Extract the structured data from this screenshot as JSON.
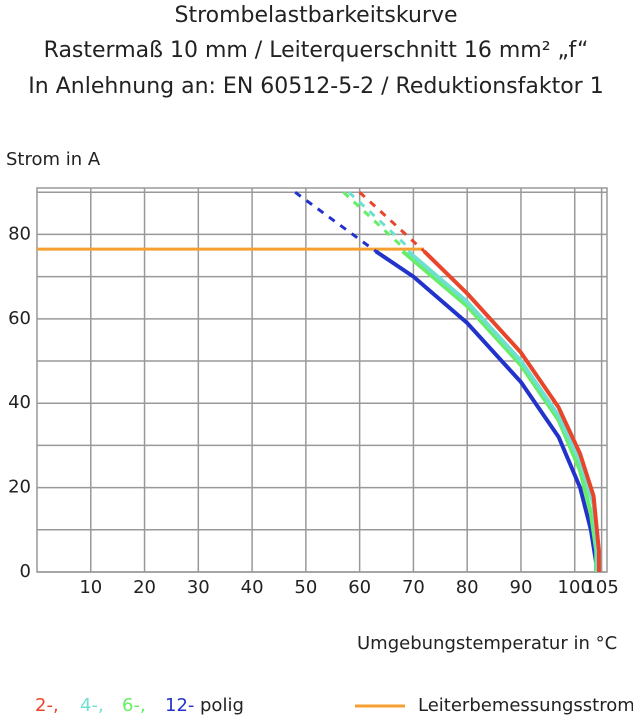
{
  "chart_data": {
    "type": "line",
    "title": [
      "Strombelastbarkeitskurve",
      "Rastermaß 10 mm / Leiterquerschnitt 16 mm² „f“",
      "In Anlehnung an: EN 60512-5-2 / Reduktionsfaktor 1"
    ],
    "y_label": "Strom in A",
    "x_label": "Umgebungstemperatur in °C",
    "xlim": [
      0,
      106
    ],
    "ylim": [
      0,
      91
    ],
    "xticks": [
      10,
      20,
      30,
      40,
      50,
      60,
      70,
      80,
      90,
      100,
      105
    ],
    "yticks": [
      0,
      20,
      40,
      60,
      80
    ],
    "y_minor_ticks": [
      10,
      30,
      50,
      70,
      90
    ],
    "grid": true,
    "legend_suffix": "polig",
    "series": [
      {
        "name": "12-",
        "color": "#2233cc",
        "x": [
          63,
          70,
          80,
          90,
          97,
          101,
          103,
          104,
          104
        ],
        "values": [
          76,
          70,
          59,
          45,
          32,
          20,
          10,
          2,
          0
        ],
        "dash_x": [
          48,
          63
        ],
        "dash_values": [
          90,
          76
        ]
      },
      {
        "name": "6-,",
        "color": "#66ee66",
        "x": [
          68,
          80,
          90,
          97,
          101,
          103,
          104,
          104
        ],
        "values": [
          76,
          63,
          49,
          36,
          24,
          14,
          5,
          0
        ],
        "dash_x": [
          57,
          68
        ],
        "dash_values": [
          90,
          77
        ]
      },
      {
        "name": "4-,",
        "color": "#6fe0d0",
        "x": [
          69,
          80,
          90,
          97,
          101,
          103.5,
          104.2,
          104.2
        ],
        "values": [
          76,
          64,
          50,
          37,
          26,
          16,
          5,
          0
        ],
        "dash_x": [
          58,
          69
        ],
        "dash_values": [
          90,
          77
        ]
      },
      {
        "name": "2-,",
        "color": "#e8452a",
        "x": [
          72,
          80,
          90,
          97,
          101,
          103.5,
          104.5,
          104.5
        ],
        "values": [
          76,
          66,
          52,
          39,
          28,
          18,
          5,
          0
        ],
        "dash_x": [
          60,
          72
        ],
        "dash_values": [
          90,
          76
        ]
      }
    ],
    "rated": {
      "name": "Leiterbemessungsstrom",
      "color": "#f5a030",
      "x": [
        0,
        72
      ],
      "values": [
        76.5,
        76.5
      ]
    }
  }
}
